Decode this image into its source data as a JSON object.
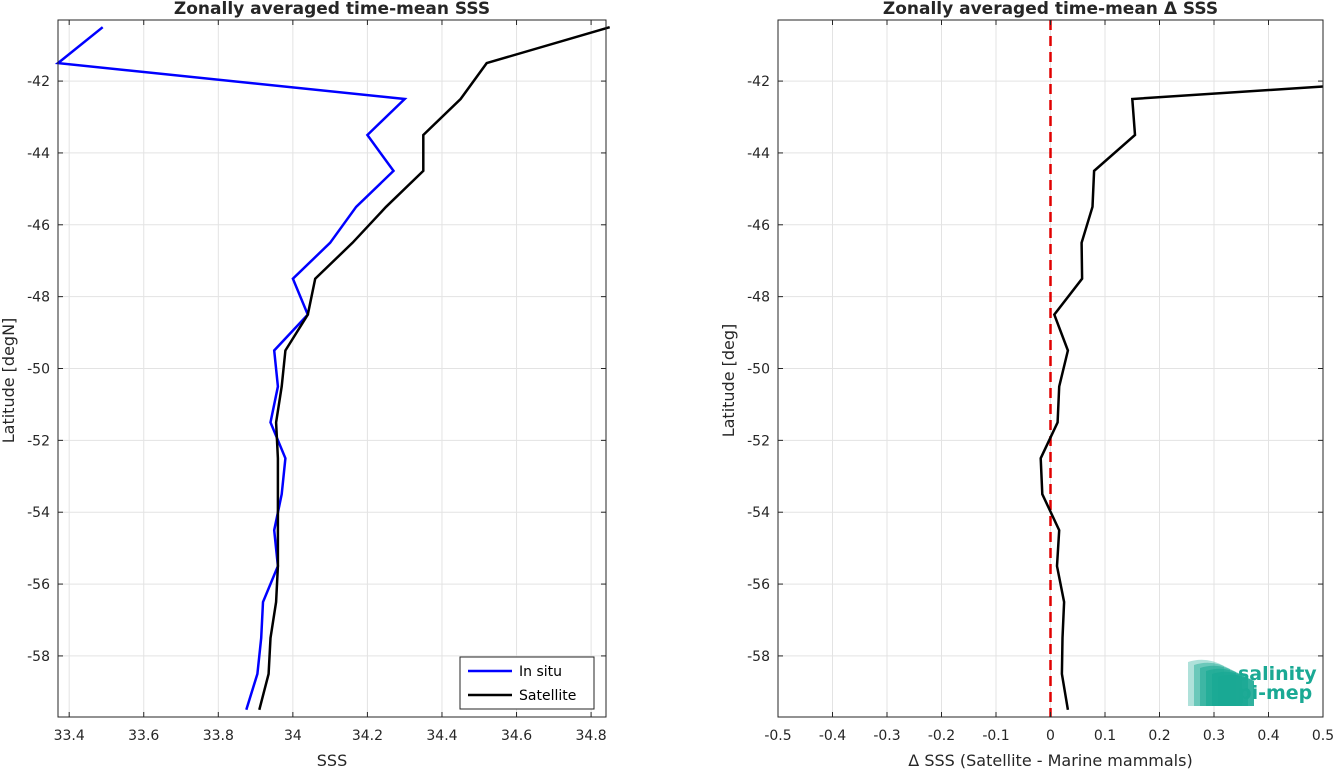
{
  "chart_data": [
    {
      "type": "line",
      "title": "Zonally averaged time-mean SSS",
      "xlabel": "SSS",
      "ylabel": "Latitude [degN]",
      "xlim": [
        33.37,
        34.84
      ],
      "ylim": [
        -59.7,
        -40.3
      ],
      "xticks": [
        33.4,
        33.6,
        33.8,
        34,
        34.2,
        34.4,
        34.6,
        34.8
      ],
      "xtick_labels": [
        "33.4",
        "33.6",
        "33.8",
        "34",
        "34.2",
        "34.4",
        "34.6",
        "34.8"
      ],
      "yticks": [
        -42,
        -44,
        -46,
        -48,
        -50,
        -52,
        -54,
        -56,
        -58
      ],
      "ytick_labels": [
        "-42",
        "-44",
        "-46",
        "-48",
        "-50",
        "-52",
        "-54",
        "-56",
        "-58"
      ],
      "grid": true,
      "legend_position": "bottom-right",
      "series": [
        {
          "name": "In situ",
          "color": "#0000ff",
          "lat": [
            -40.5,
            -41.5,
            -42.5,
            -43.5,
            -44.5,
            -45.5,
            -46.5,
            -47.5,
            -48.5,
            -49.5,
            -50.5,
            -51.5,
            -52.5,
            -53.5,
            -54.5,
            -55.5,
            -56.5,
            -57.5,
            -58.5,
            -59.5
          ],
          "sss": [
            33.49,
            33.37,
            34.3,
            34.2,
            34.27,
            34.17,
            34.1,
            34.0,
            34.04,
            33.95,
            33.96,
            33.94,
            33.98,
            33.97,
            33.95,
            33.96,
            33.92,
            33.915,
            33.905,
            33.875
          ]
        },
        {
          "name": "Satellite",
          "color": "#000000",
          "lat": [
            -40.5,
            -41.5,
            -42.5,
            -43.5,
            -44.5,
            -45.5,
            -46.5,
            -47.5,
            -48.5,
            -49.5,
            -50.5,
            -51.5,
            -52.5,
            -53.5,
            -54.5,
            -55.5,
            -56.5,
            -57.5,
            -58.5,
            -59.5
          ],
          "sss": [
            34.85,
            34.52,
            34.45,
            34.35,
            34.35,
            34.25,
            34.16,
            34.06,
            34.04,
            33.98,
            33.97,
            33.955,
            33.96,
            33.96,
            33.96,
            33.96,
            33.955,
            33.94,
            33.935,
            33.91
          ]
        }
      ]
    },
    {
      "type": "line",
      "title": "Zonally averaged time-mean Δ SSS",
      "xlabel": "Δ SSS (Satellite - Marine mammals)",
      "ylabel": "Latitude [deg]",
      "xlim": [
        -0.5,
        0.5
      ],
      "ylim": [
        -59.7,
        -40.3
      ],
      "xticks": [
        -0.5,
        -0.4,
        -0.3,
        -0.2,
        -0.1,
        0,
        0.1,
        0.2,
        0.3,
        0.4,
        0.5
      ],
      "xtick_labels": [
        "-0.5",
        "-0.4",
        "-0.3",
        "-0.2",
        "-0.1",
        "0",
        "0.1",
        "0.2",
        "0.3",
        "0.4",
        "0.5"
      ],
      "yticks": [
        -42,
        -44,
        -46,
        -48,
        -50,
        -52,
        -54,
        -56,
        -58
      ],
      "ytick_labels": [
        "-42",
        "-44",
        "-46",
        "-48",
        "-50",
        "-52",
        "-54",
        "-56",
        "-58"
      ],
      "grid": true,
      "reference_line": {
        "x": 0,
        "color": "#e00000",
        "style": "dashed"
      },
      "series": [
        {
          "color": "#000000",
          "lat": [
            -42.15,
            -42.5,
            -43.5,
            -44.5,
            -45.5,
            -46.5,
            -47.5,
            -48.5,
            -49.5,
            -50.5,
            -51.5,
            -52.5,
            -53.5,
            -54.5,
            -55.5,
            -56.5,
            -57.5,
            -58.5,
            -59.5
          ],
          "dsss": [
            0.5,
            0.15,
            0.155,
            0.08,
            0.077,
            0.057,
            0.058,
            0.007,
            0.032,
            0.016,
            0.013,
            -0.018,
            -0.015,
            0.016,
            0.012,
            0.025,
            0.022,
            0.021,
            0.032
          ]
        }
      ]
    }
  ],
  "logo": {
    "line1": "salinity",
    "line2": "pi-mep",
    "color": "#1aa994"
  }
}
